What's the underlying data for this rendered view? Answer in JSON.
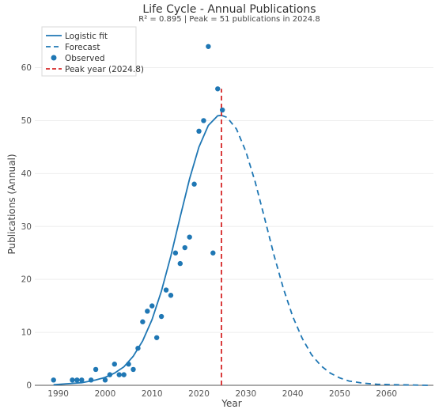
{
  "chart_data": {
    "type": "line",
    "title": "Life Cycle - Annual Publications",
    "subtitle": "R² = 0.895 | Peak = 51 publications in 2024.8",
    "xlabel": "Year",
    "ylabel": "Publications (Annual)",
    "xlim": [
      1985,
      2070
    ],
    "ylim": [
      0,
      68
    ],
    "x_ticks": [
      1990,
      2000,
      2010,
      2020,
      2030,
      2040,
      2050,
      2060
    ],
    "y_ticks": [
      0,
      10,
      20,
      30,
      40,
      50,
      60
    ],
    "grid": "horizontal",
    "legend_position": "top-left",
    "colors": {
      "series": "#1f77b4",
      "peak": "#d62728",
      "grid": "#eeeeee"
    },
    "peak": {
      "year": 2024.8,
      "value": 51
    },
    "legend": [
      {
        "name": "Logistic fit",
        "style": "solid-line"
      },
      {
        "name": "Forecast",
        "style": "dashed-line"
      },
      {
        "name": "Observed",
        "style": "marker"
      },
      {
        "name": "Peak year (2024.8)",
        "style": "red-dashed-line"
      }
    ],
    "series": [
      {
        "name": "Observed",
        "type": "scatter",
        "points": [
          [
            1989,
            1
          ],
          [
            1993,
            1
          ],
          [
            1994,
            1
          ],
          [
            1995,
            1
          ],
          [
            1997,
            1
          ],
          [
            1998,
            3
          ],
          [
            2000,
            1
          ],
          [
            2001,
            2
          ],
          [
            2002,
            4
          ],
          [
            2003,
            2
          ],
          [
            2004,
            2
          ],
          [
            2005,
            4
          ],
          [
            2006,
            3
          ],
          [
            2007,
            7
          ],
          [
            2008,
            12
          ],
          [
            2009,
            14
          ],
          [
            2010,
            15
          ],
          [
            2011,
            9
          ],
          [
            2012,
            13
          ],
          [
            2013,
            18
          ],
          [
            2014,
            17
          ],
          [
            2015,
            25
          ],
          [
            2016,
            23
          ],
          [
            2017,
            26
          ],
          [
            2018,
            28
          ],
          [
            2019,
            38
          ],
          [
            2020,
            48
          ],
          [
            2021,
            50
          ],
          [
            2022,
            64
          ],
          [
            2023,
            25
          ],
          [
            2024,
            56
          ],
          [
            2025,
            52
          ]
        ]
      },
      {
        "name": "Logistic fit",
        "type": "line",
        "points": [
          [
            1989,
            0.1
          ],
          [
            1992,
            0.3
          ],
          [
            1995,
            0.5
          ],
          [
            1998,
            1.0
          ],
          [
            2000,
            1.5
          ],
          [
            2002,
            2.3
          ],
          [
            2004,
            3.5
          ],
          [
            2006,
            5.5
          ],
          [
            2008,
            8.4
          ],
          [
            2010,
            12.4
          ],
          [
            2012,
            17.8
          ],
          [
            2014,
            24.4
          ],
          [
            2016,
            31.8
          ],
          [
            2018,
            39.0
          ],
          [
            2020,
            45.0
          ],
          [
            2022,
            49.1
          ],
          [
            2024,
            50.9
          ],
          [
            2024.8,
            51.0
          ]
        ]
      },
      {
        "name": "Forecast",
        "type": "line",
        "points": [
          [
            2024.8,
            51.0
          ],
          [
            2026,
            50.6
          ],
          [
            2028,
            48.4
          ],
          [
            2030,
            44.2
          ],
          [
            2032,
            38.4
          ],
          [
            2034,
            31.6
          ],
          [
            2036,
            24.6
          ],
          [
            2038,
            18.3
          ],
          [
            2040,
            13.0
          ],
          [
            2042,
            8.9
          ],
          [
            2044,
            5.8
          ],
          [
            2046,
            3.7
          ],
          [
            2048,
            2.3
          ],
          [
            2050,
            1.4
          ],
          [
            2052,
            0.8
          ],
          [
            2055,
            0.4
          ],
          [
            2058,
            0.2
          ],
          [
            2062,
            0.1
          ],
          [
            2069,
            0.0
          ]
        ]
      }
    ]
  }
}
